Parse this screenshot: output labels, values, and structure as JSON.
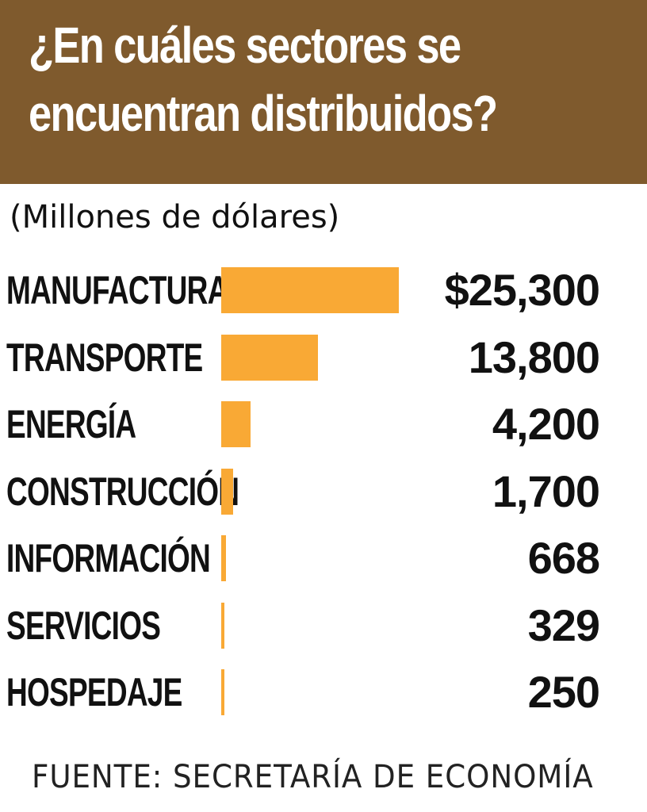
{
  "title_line1": "¿En cuáles sectores se",
  "title_line2": "encuentran distribuidos?",
  "subtitle": "(Millones de dólares)",
  "source": "FUENTE: SECRETARÍA DE ECONOMÍA",
  "colors": {
    "header": "#7f5a2d",
    "bar": "#f9a935",
    "text": "#111111"
  },
  "chart_data": {
    "type": "bar",
    "orientation": "horizontal",
    "title": "¿En cuáles sectores se encuentran distribuidos?",
    "subtitle": "(Millones de dólares)",
    "categories": [
      "MANUFACTURA",
      "TRANSPORTE",
      "ENERGÍA",
      "CONSTRUCCIÓN",
      "INFORMACIÓN",
      "SERVICIOS",
      "HOSPEDAJE"
    ],
    "values": [
      25300,
      13800,
      4200,
      1700,
      668,
      329,
      250
    ],
    "value_labels": [
      "$25,300",
      "13,800",
      "4,200",
      "1,700",
      "668",
      "329",
      "250"
    ],
    "xlim": [
      0,
      25300
    ],
    "grid": false,
    "legend": "none"
  }
}
